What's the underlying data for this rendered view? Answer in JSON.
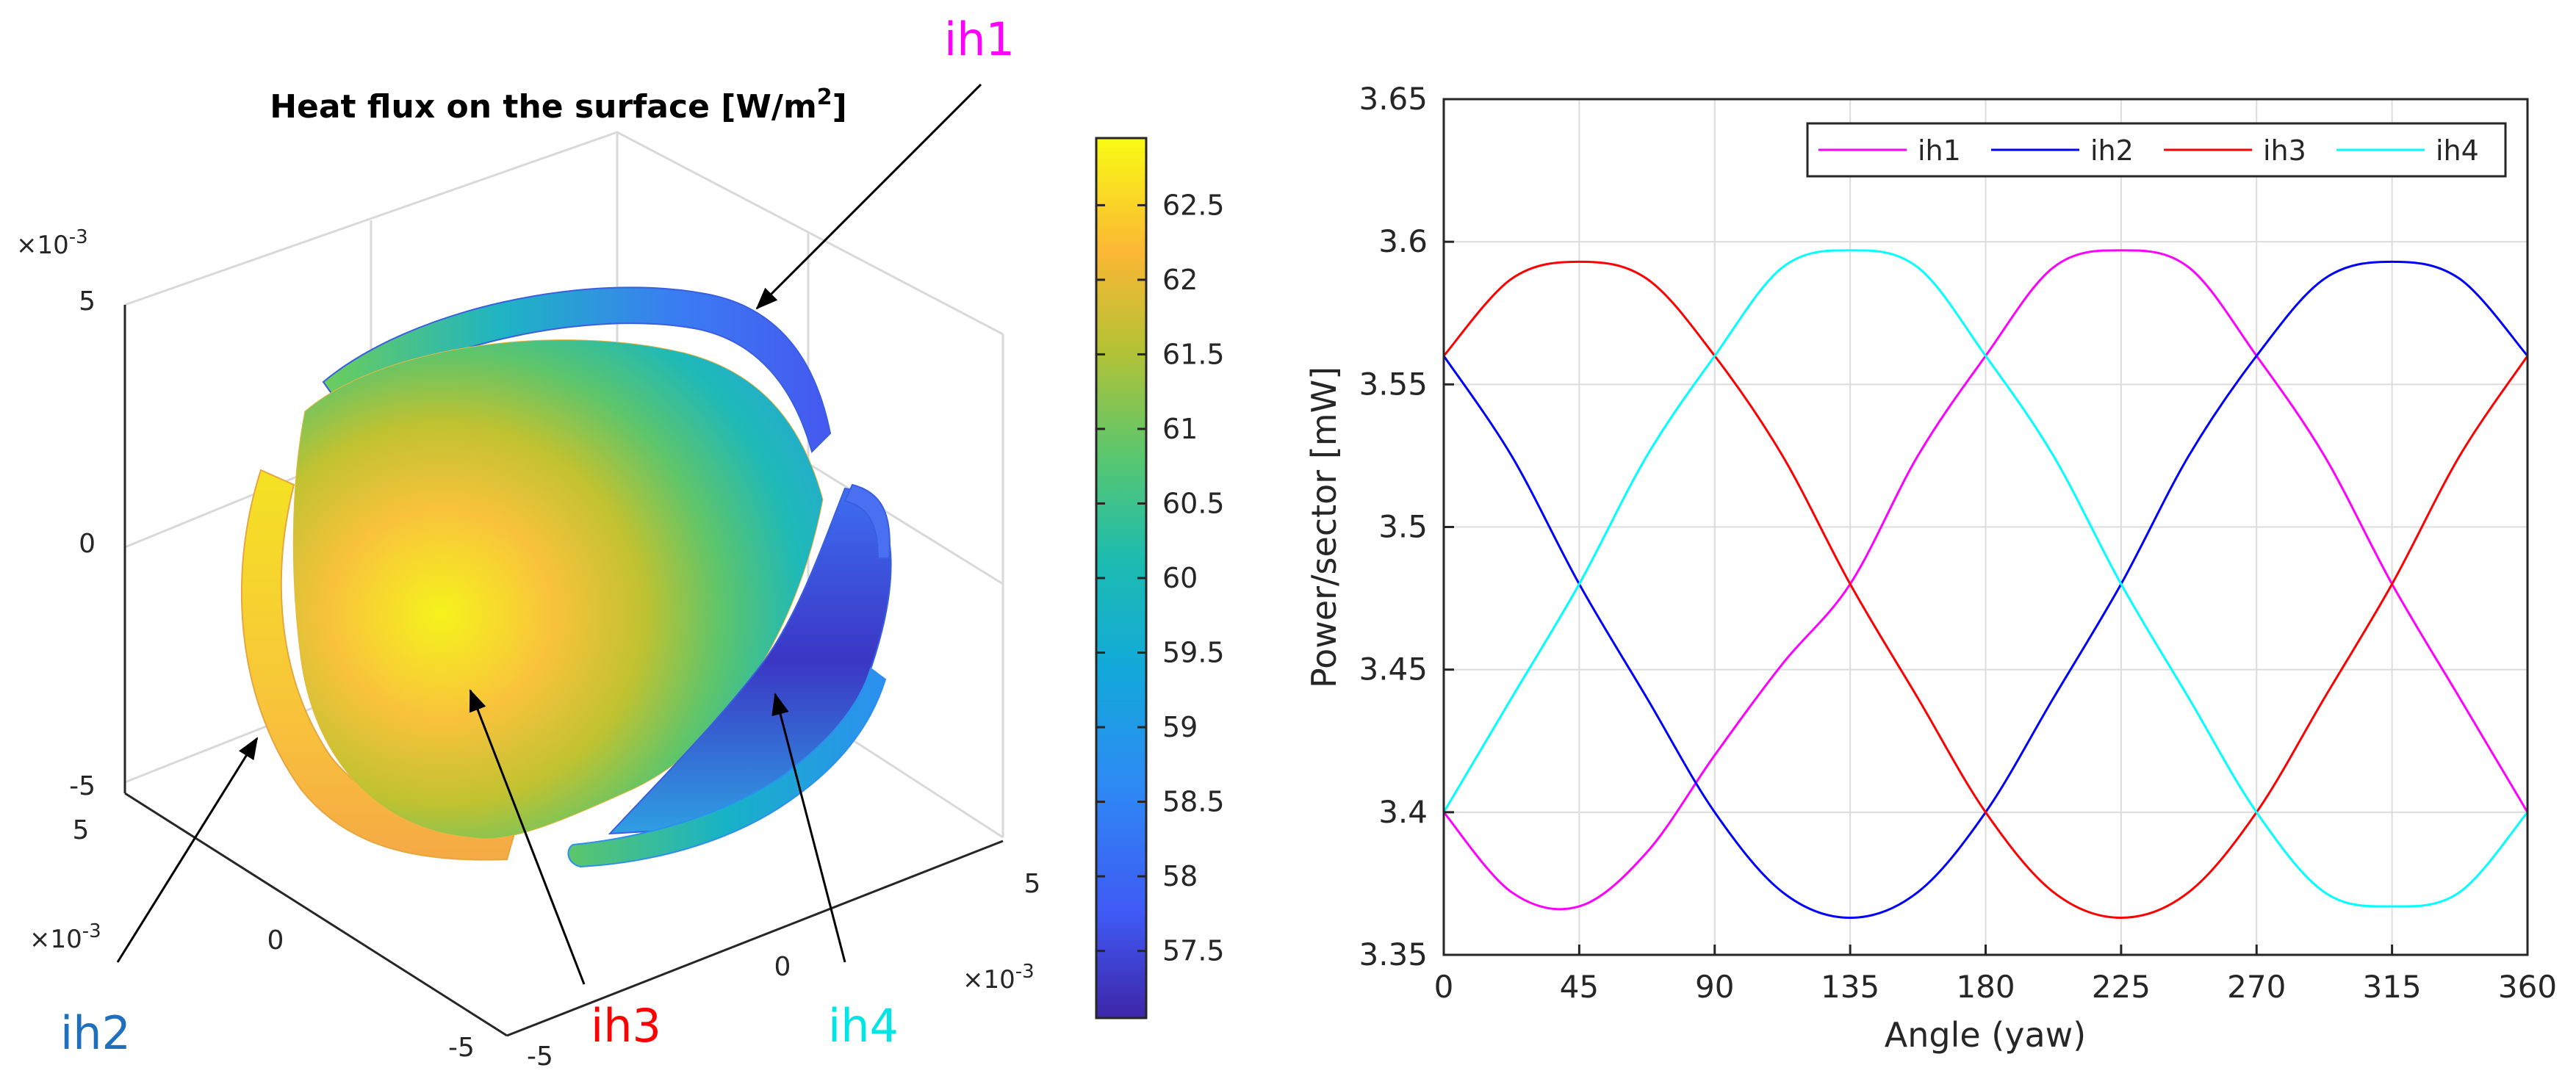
{
  "colors": {
    "ih1": "#ff00ff",
    "ih2": "#0000ff",
    "ih3": "#ff0000",
    "ih4": "#00ffff",
    "label_ih2": "#1f6fbf",
    "axis": "#262626",
    "grid": "#dcdcdc"
  },
  "surface_plot": {
    "title_main": "Heat flux on the surface [W/m",
    "title_sup": "2",
    "title_end": "]",
    "exponent": "×10",
    "exponent_power": "-3",
    "z_ticks": [
      "5",
      "0",
      "-5"
    ],
    "y_ticks": [
      "5",
      "0",
      "-5"
    ],
    "x_ticks": [
      "-5",
      "0",
      "5"
    ],
    "colorbar": {
      "ticks": [
        "62.5",
        "62",
        "61.5",
        "61",
        "60.5",
        "60",
        "59.5",
        "59",
        "58.5",
        "58",
        "57.5"
      ],
      "tick_values": [
        62.5,
        62,
        61.5,
        61,
        60.5,
        60,
        59.5,
        59,
        58.5,
        58,
        57.5
      ],
      "range": [
        57.05,
        62.95
      ]
    },
    "callouts": [
      "ih1",
      "ih2",
      "ih3",
      "ih4"
    ]
  },
  "chart_data": {
    "type": "line",
    "title": "",
    "xlabel": "Angle (yaw)",
    "ylabel": "Power/sector [mW]",
    "xlim": [
      0,
      360
    ],
    "ylim": [
      3.35,
      3.65
    ],
    "xticks": [
      0,
      45,
      90,
      135,
      180,
      225,
      270,
      315,
      360
    ],
    "yticks": [
      3.35,
      3.4,
      3.45,
      3.5,
      3.55,
      3.6,
      3.65
    ],
    "xtick_labels": [
      "0",
      "45",
      "90",
      "135",
      "180",
      "225",
      "270",
      "315",
      "360"
    ],
    "ytick_labels": [
      "3.35",
      "3.4",
      "3.45",
      "3.5",
      "3.55",
      "3.6",
      "3.65"
    ],
    "grid": true,
    "legend_position": "top-right",
    "series": [
      {
        "name": "ih1",
        "key": "ih1",
        "x": [
          0,
          22.5,
          45,
          67.5,
          90,
          112.5,
          135,
          157.5,
          180,
          202.5,
          225,
          247.5,
          270,
          292.5,
          315,
          337.5,
          360
        ],
        "values": [
          3.4,
          3.372,
          3.367,
          3.386,
          3.42,
          3.452,
          3.48,
          3.525,
          3.56,
          3.591,
          3.597,
          3.591,
          3.56,
          3.525,
          3.48,
          3.44,
          3.4
        ]
      },
      {
        "name": "ih2",
        "key": "ih2",
        "x": [
          0,
          22.5,
          45,
          67.5,
          90,
          112.5,
          135,
          157.5,
          180,
          202.5,
          225,
          247.5,
          270,
          292.5,
          315,
          337.5,
          360
        ],
        "values": [
          3.56,
          3.525,
          3.48,
          3.44,
          3.4,
          3.372,
          3.363,
          3.372,
          3.4,
          3.44,
          3.48,
          3.525,
          3.56,
          3.587,
          3.593,
          3.587,
          3.56
        ]
      },
      {
        "name": "ih3",
        "key": "ih3",
        "x": [
          0,
          22.5,
          45,
          67.5,
          90,
          112.5,
          135,
          157.5,
          180,
          202.5,
          225,
          247.5,
          270,
          292.5,
          315,
          337.5,
          360
        ],
        "values": [
          3.56,
          3.587,
          3.593,
          3.587,
          3.56,
          3.525,
          3.48,
          3.44,
          3.4,
          3.372,
          3.363,
          3.372,
          3.4,
          3.44,
          3.48,
          3.525,
          3.56
        ]
      },
      {
        "name": "ih4",
        "key": "ih4",
        "x": [
          0,
          22.5,
          45,
          67.5,
          90,
          112.5,
          135,
          157.5,
          180,
          202.5,
          225,
          247.5,
          270,
          292.5,
          315,
          337.5,
          360
        ],
        "values": [
          3.4,
          3.44,
          3.48,
          3.525,
          3.56,
          3.591,
          3.597,
          3.591,
          3.56,
          3.525,
          3.48,
          3.44,
          3.4,
          3.372,
          3.367,
          3.372,
          3.4
        ]
      }
    ]
  }
}
